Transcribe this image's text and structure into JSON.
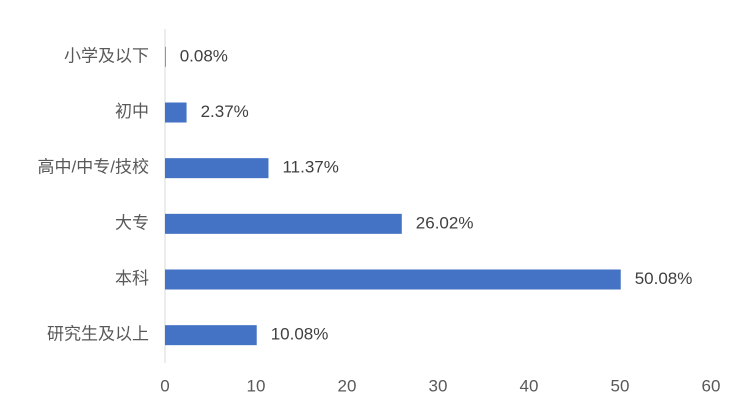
{
  "chart_data": {
    "type": "bar",
    "orientation": "horizontal",
    "categories": [
      "小学及以下",
      "初中",
      "高中/中专/技校",
      "大专",
      "本科",
      "研究生及以上"
    ],
    "values": [
      0.08,
      2.37,
      11.37,
      26.02,
      50.08,
      10.08
    ],
    "value_labels": [
      "0.08%",
      "2.37%",
      "11.37%",
      "26.02%",
      "50.08%",
      "10.08%"
    ],
    "color": "#4472c4",
    "xlim": [
      0,
      60
    ],
    "xticks": [
      0,
      10,
      20,
      30,
      40,
      50,
      60
    ],
    "grid": false
  }
}
